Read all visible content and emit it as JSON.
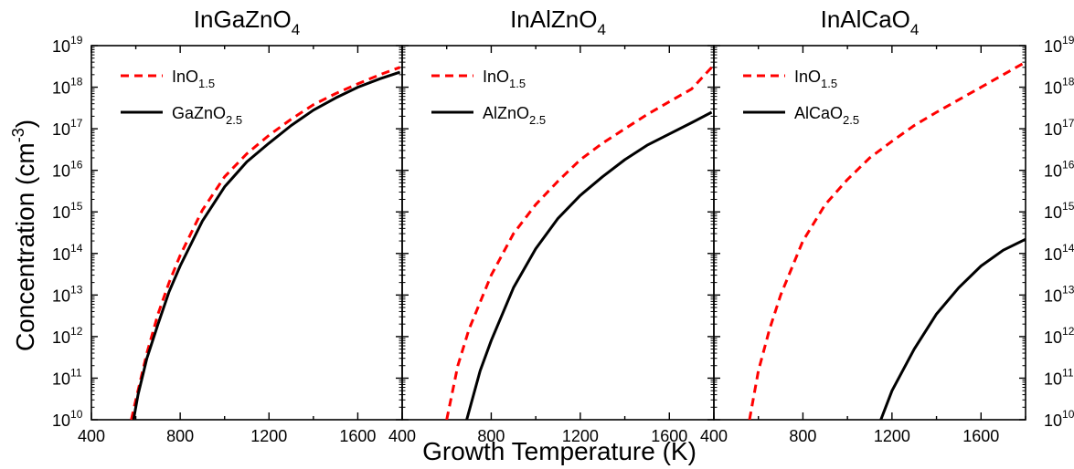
{
  "figure": {
    "xlabel": "Growth Temperature (K)",
    "ylabel": "Concentration (cm",
    "ylabel_sup": "-3",
    "ylabel_end": ")"
  },
  "chart_data": [
    {
      "type": "line",
      "title": "InGaZnO",
      "title_sub": "4",
      "xlim": [
        400,
        1800
      ],
      "ylim": [
        10000000000.0,
        1e+19
      ],
      "y_scale": "log",
      "legend_position": "top-left",
      "xticks": [
        400,
        800,
        1200,
        1600
      ],
      "xtick_labels": [
        "400",
        "800",
        "1200",
        "1600"
      ],
      "series": [
        {
          "name": "InO",
          "name_sub": "1.5",
          "color": "#ff0000",
          "style": "dashed",
          "x": [
            580,
            600,
            650,
            700,
            750,
            800,
            900,
            1000,
            1100,
            1200,
            1300,
            1400,
            1500,
            1600,
            1700,
            1790
          ],
          "y": [
            10000000000.0,
            30000000000.0,
            400000000000.0,
            3500000000000.0,
            20000000000000.0,
            90000000000000.0,
            1100000000000000.0,
            7000000000000000.0,
            2.5e+16,
            7e+16,
            1.7e+17,
            3.8e+17,
            7e+17,
            1.2e+18,
            2e+18,
            3e+18
          ]
        },
        {
          "name": "GaZnO",
          "name_sub": "2.5",
          "color": "#000000",
          "style": "solid",
          "x": [
            590,
            610,
            650,
            700,
            750,
            800,
            900,
            1000,
            1100,
            1200,
            1300,
            1400,
            1500,
            1600,
            1700,
            1790
          ],
          "y": [
            10000000000.0,
            40000000000.0,
            300000000000.0,
            2000000000000.0,
            12000000000000.0,
            50000000000000.0,
            600000000000000.0,
            4000000000000000.0,
            1.6e+16,
            4.5e+16,
            1.2e+17,
            2.8e+17,
            5.5e+17,
            1e+18,
            1.6e+18,
            2.3e+18
          ]
        }
      ]
    },
    {
      "type": "line",
      "title": "InAlZnO",
      "title_sub": "4",
      "xlim": [
        400,
        1800
      ],
      "ylim": [
        10000000000.0,
        1e+19
      ],
      "y_scale": "log",
      "legend_position": "top-left",
      "xticks": [
        400,
        800,
        1200,
        1600
      ],
      "xtick_labels": [
        "400",
        "800",
        "1200",
        "1600"
      ],
      "series": [
        {
          "name": "InO",
          "name_sub": "1.5",
          "color": "#ff0000",
          "style": "dashed",
          "x": [
            600,
            650,
            700,
            800,
            900,
            1000,
            1100,
            1200,
            1300,
            1400,
            1500,
            1600,
            1700,
            1790
          ],
          "y": [
            10000000000.0,
            200000000000.0,
            1500000000000.0,
            30000000000000.0,
            300000000000000.0,
            1500000000000000.0,
            5500000000000000.0,
            1.8e+16,
            4.5e+16,
            1e+17,
            2.2e+17,
            4.5e+17,
            9e+17,
            3e+18
          ]
        },
        {
          "name": "AlZnO",
          "name_sub": "2.5",
          "color": "#000000",
          "style": "solid",
          "x": [
            690,
            750,
            800,
            900,
            1000,
            1100,
            1200,
            1300,
            1400,
            1500,
            1600,
            1700,
            1790
          ],
          "y": [
            10000000000.0,
            150000000000.0,
            800000000000.0,
            15000000000000.0,
            130000000000000.0,
            700000000000000.0,
            2500000000000000.0,
            7000000000000000.0,
            1.8e+16,
            4e+16,
            7.5e+16,
            1.4e+17,
            2.5e+17
          ]
        }
      ]
    },
    {
      "type": "line",
      "title": "InAlCaO",
      "title_sub": "4",
      "xlim": [
        400,
        1800
      ],
      "ylim": [
        10000000000.0,
        1e+19
      ],
      "y_scale": "log",
      "legend_position": "top-left",
      "xticks": [
        400,
        800,
        1200,
        1600
      ],
      "xtick_labels": [
        "400",
        "800",
        "1200",
        "1600"
      ],
      "series": [
        {
          "name": "InO",
          "name_sub": "1.5",
          "color": "#ff0000",
          "style": "dashed",
          "x": [
            560,
            600,
            650,
            700,
            800,
            900,
            1000,
            1100,
            1200,
            1300,
            1400,
            1500,
            1600,
            1700,
            1800
          ],
          "y": [
            10000000000.0,
            150000000000.0,
            1500000000000.0,
            10000000000000.0,
            200000000000000.0,
            1500000000000000.0,
            6000000000000000.0,
            2e+16,
            5e+16,
            1.2e+17,
            2.5e+17,
            5e+17,
            1e+18,
            2e+18,
            4e+18
          ]
        },
        {
          "name": "AlCaO",
          "name_sub": "2.5",
          "color": "#000000",
          "style": "solid",
          "x": [
            1150,
            1200,
            1300,
            1400,
            1500,
            1600,
            1700,
            1800
          ],
          "y": [
            10000000000.0,
            50000000000.0,
            500000000000.0,
            3500000000000.0,
            15000000000000.0,
            50000000000000.0,
            120000000000000.0,
            220000000000000.0
          ]
        }
      ]
    }
  ],
  "y_tick_exponents": [
    "10",
    "11",
    "12",
    "13",
    "14",
    "15",
    "16",
    "17",
    "18",
    "19"
  ],
  "y_tick_base": "10"
}
